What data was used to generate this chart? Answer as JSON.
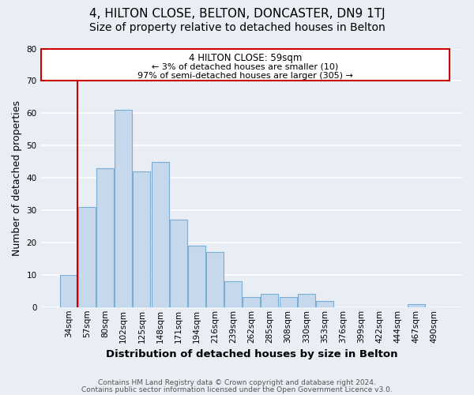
{
  "title": "4, HILTON CLOSE, BELTON, DONCASTER, DN9 1TJ",
  "subtitle": "Size of property relative to detached houses in Belton",
  "xlabel": "Distribution of detached houses by size in Belton",
  "ylabel": "Number of detached properties",
  "footer1": "Contains HM Land Registry data © Crown copyright and database right 2024.",
  "footer2": "Contains public sector information licensed under the Open Government Licence v3.0.",
  "bar_labels": [
    "34sqm",
    "57sqm",
    "80sqm",
    "102sqm",
    "125sqm",
    "148sqm",
    "171sqm",
    "194sqm",
    "216sqm",
    "239sqm",
    "262sqm",
    "285sqm",
    "308sqm",
    "330sqm",
    "353sqm",
    "376sqm",
    "399sqm",
    "422sqm",
    "444sqm",
    "467sqm",
    "490sqm"
  ],
  "bar_values": [
    10,
    31,
    43,
    61,
    42,
    45,
    27,
    19,
    17,
    8,
    3,
    4,
    3,
    4,
    2,
    0,
    0,
    0,
    0,
    1,
    0
  ],
  "bar_color": "#c5d8ec",
  "bar_edge_color": "#7aadd4",
  "highlight_line_color": "#cc0000",
  "highlight_bar_index": 1,
  "annotation_title": "4 HILTON CLOSE: 59sqm",
  "annotation_line1": "← 3% of detached houses are smaller (10)",
  "annotation_line2": "97% of semi-detached houses are larger (305) →",
  "annotation_box_color": "#ffffff",
  "annotation_box_edge_color": "#cc0000",
  "ylim": [
    0,
    80
  ],
  "yticks": [
    0,
    10,
    20,
    30,
    40,
    50,
    60,
    70,
    80
  ],
  "background_color": "#e8eef4",
  "grid_color": "#ffffff",
  "title_fontsize": 11,
  "subtitle_fontsize": 10,
  "axis_label_fontsize": 9.5,
  "tick_fontsize": 7.5,
  "ylabel_fontsize": 9
}
